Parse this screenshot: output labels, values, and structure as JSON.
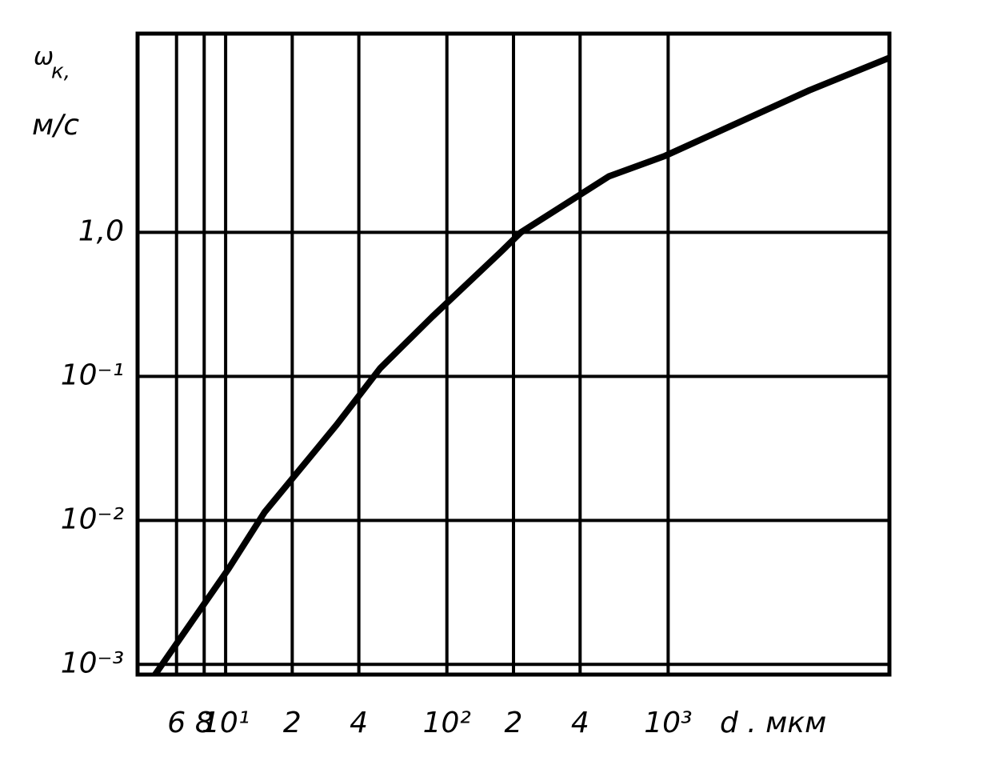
{
  "chart_data": {
    "type": "line",
    "ylabel_symbol": "ω",
    "ylabel_subscript": "к,",
    "ylabel_unit": "м/с",
    "xlabel": "d . мкм",
    "x_log": true,
    "y_log": true,
    "grid": true,
    "xlim": [
      4,
      10000
    ],
    "ylim": [
      0.00085,
      24
    ],
    "xticks": [
      6,
      8,
      {
        "value": 10,
        "label": "10¹"
      },
      {
        "value": 20,
        "label": "2"
      },
      {
        "value": 40,
        "label": "4"
      },
      {
        "value": 100,
        "label": "10²"
      },
      {
        "value": 200,
        "label": "2"
      },
      {
        "value": 400,
        "label": "4"
      },
      {
        "value": 1000,
        "label": "10³"
      }
    ],
    "yticks": [
      {
        "value": 0.001,
        "label": "10⁻³"
      },
      {
        "value": 0.01,
        "label": "10⁻²"
      },
      {
        "value": 0.1,
        "label": "10⁻¹"
      },
      {
        "value": 1,
        "label": "1,0"
      }
    ],
    "series": [
      {
        "color": "#000000",
        "x": [
          4.8,
          10.3,
          15,
          31.7,
          50,
          86,
          175,
          216,
          540,
          970,
          4350,
          10000
        ],
        "values": [
          0.00085,
          0.0046,
          0.0114,
          0.046,
          0.114,
          0.26,
          0.73,
          1.0,
          2.45,
          3.4,
          9.7,
          16.3
        ]
      }
    ]
  }
}
